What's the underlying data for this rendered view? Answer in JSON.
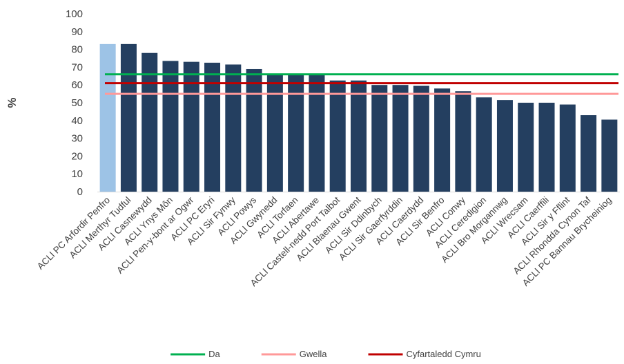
{
  "chart_data": {
    "type": "bar",
    "ylabel": "%",
    "ylim": [
      0,
      100
    ],
    "yticks": [
      0,
      10,
      20,
      30,
      40,
      50,
      60,
      70,
      80,
      90,
      100
    ],
    "grid": false,
    "legend_position": "bottom",
    "categories": [
      "ACLl PC Arfordir Penfro",
      "ACLl Merthyr Tudful",
      "ACLl Casnewydd",
      "ACLl Ynys Môn",
      "ACLl Pen-y-bont ar Ogwr",
      "ACLl PC Eryri",
      "ACLl Sir Fynwy",
      "ACLl Powys",
      "ACLl Gwynedd",
      "ACLl Torfaen",
      "ACLl Abertawe",
      "ACLl Castell-nedd Port Talbot",
      "ACLl Blaenau Gwent",
      "ACLl Sir Ddinbych",
      "ACLl Sir Gaerfyrddin",
      "ACLl Caerdydd",
      "ACLl Sir Benfro",
      "ACLl Conwy",
      "ACLl Ceredigion",
      "ACLl Bro Morgannwg",
      "ACLl Wrecsam",
      "ACLl Caerffili",
      "ACLl Sir y Fflint",
      "ACLl Rhondda Cynon Taf",
      "ACLl PC Bannau Brycheiniog"
    ],
    "values": [
      83,
      83,
      78,
      73.5,
      73,
      72.5,
      71.5,
      69,
      66,
      65.5,
      65.5,
      62.5,
      62.5,
      60,
      60,
      59.5,
      58,
      56.5,
      53,
      51.5,
      50,
      50,
      49,
      43,
      40.5
    ],
    "highlight_index": 0,
    "colors": {
      "bar": "#243f60",
      "highlight": "#9dc3e6"
    },
    "reference_lines": [
      {
        "name": "Da",
        "value": 66,
        "color": "#00b050"
      },
      {
        "name": "Gwella",
        "value": 55,
        "color": "#ff9999"
      },
      {
        "name": "Cyfartaledd Cymru",
        "value": 61,
        "color": "#c00000"
      }
    ]
  }
}
